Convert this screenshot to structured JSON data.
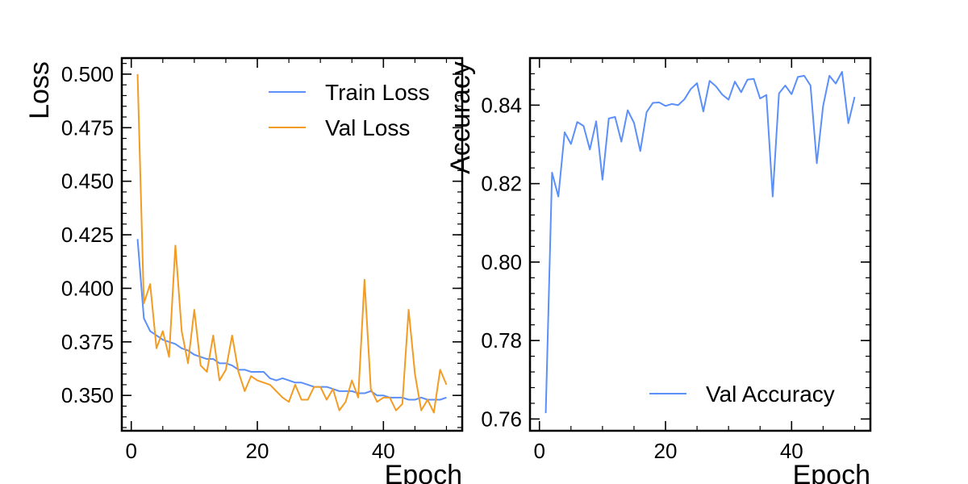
{
  "chart_data": [
    {
      "type": "line",
      "xlabel": "Epoch",
      "ylabel": "Loss",
      "xlim": [
        -1.5,
        52.5
      ],
      "ylim": [
        0.3335,
        0.5075
      ],
      "xticks": [
        0,
        20,
        40
      ],
      "xtick_labels": [
        "0",
        "20",
        "40"
      ],
      "yticks": [
        0.35,
        0.375,
        0.4,
        0.425,
        0.45,
        0.475,
        0.5
      ],
      "ytick_labels": [
        "0.350",
        "0.375",
        "0.400",
        "0.425",
        "0.450",
        "0.475",
        "0.500"
      ],
      "legend_position": "top-right",
      "grid": false,
      "x": [
        1,
        2,
        3,
        4,
        5,
        6,
        7,
        8,
        9,
        10,
        11,
        12,
        13,
        14,
        15,
        16,
        17,
        18,
        19,
        20,
        21,
        22,
        23,
        24,
        25,
        26,
        27,
        28,
        29,
        30,
        31,
        32,
        33,
        34,
        35,
        36,
        37,
        38,
        39,
        40,
        41,
        42,
        43,
        44,
        45,
        46,
        47,
        48,
        49,
        50
      ],
      "series": [
        {
          "name": "Train Loss",
          "color": "#5b8ff9",
          "values": [
            0.423,
            0.386,
            0.38,
            0.378,
            0.376,
            0.375,
            0.374,
            0.372,
            0.371,
            0.369,
            0.368,
            0.367,
            0.367,
            0.365,
            0.365,
            0.364,
            0.362,
            0.362,
            0.361,
            0.361,
            0.361,
            0.358,
            0.357,
            0.358,
            0.357,
            0.356,
            0.356,
            0.355,
            0.354,
            0.354,
            0.354,
            0.353,
            0.352,
            0.352,
            0.352,
            0.351,
            0.351,
            0.352,
            0.35,
            0.35,
            0.349,
            0.349,
            0.349,
            0.348,
            0.348,
            0.349,
            0.348,
            0.348,
            0.348,
            0.349
          ]
        },
        {
          "name": "Val Loss",
          "color": "#f39c24",
          "values": [
            0.5,
            0.393,
            0.402,
            0.372,
            0.38,
            0.368,
            0.42,
            0.38,
            0.365,
            0.39,
            0.364,
            0.361,
            0.378,
            0.357,
            0.362,
            0.378,
            0.361,
            0.352,
            0.359,
            0.357,
            0.356,
            0.355,
            0.352,
            0.349,
            0.347,
            0.355,
            0.348,
            0.348,
            0.354,
            0.354,
            0.348,
            0.353,
            0.343,
            0.347,
            0.357,
            0.349,
            0.404,
            0.353,
            0.347,
            0.349,
            0.349,
            0.343,
            0.346,
            0.39,
            0.36,
            0.343,
            0.348,
            0.342,
            0.362,
            0.355
          ]
        }
      ]
    },
    {
      "type": "line",
      "xlabel": "Epoch",
      "ylabel": "Accuracy",
      "xlim": [
        -1.5,
        52.5
      ],
      "ylim": [
        0.757,
        0.852
      ],
      "xticks": [
        0,
        20,
        40
      ],
      "xtick_labels": [
        "0",
        "20",
        "40"
      ],
      "yticks": [
        0.76,
        0.78,
        0.8,
        0.82,
        0.84
      ],
      "ytick_labels": [
        "0.76",
        "0.78",
        "0.80",
        "0.82",
        "0.84"
      ],
      "legend_position": "bottom-right",
      "grid": false,
      "x": [
        1,
        2,
        3,
        4,
        5,
        6,
        7,
        8,
        9,
        10,
        11,
        12,
        13,
        14,
        15,
        16,
        17,
        18,
        19,
        20,
        21,
        22,
        23,
        24,
        25,
        26,
        27,
        28,
        29,
        30,
        31,
        32,
        33,
        34,
        35,
        36,
        37,
        38,
        39,
        40,
        41,
        42,
        43,
        44,
        45,
        46,
        47,
        48,
        49,
        50
      ],
      "series": [
        {
          "name": "Val Accuracy",
          "color": "#5b8ff9",
          "values": [
            0.7615,
            0.8228,
            0.8167,
            0.8331,
            0.8301,
            0.8357,
            0.8347,
            0.8287,
            0.8359,
            0.821,
            0.8366,
            0.837,
            0.8307,
            0.8387,
            0.8355,
            0.8283,
            0.8382,
            0.8406,
            0.8407,
            0.8398,
            0.8403,
            0.84,
            0.8415,
            0.8441,
            0.8456,
            0.8384,
            0.8462,
            0.8448,
            0.8427,
            0.8414,
            0.846,
            0.8433,
            0.8465,
            0.8467,
            0.8417,
            0.8426,
            0.8167,
            0.843,
            0.845,
            0.8428,
            0.8472,
            0.8475,
            0.845,
            0.8252,
            0.8398,
            0.8475,
            0.8455,
            0.8485,
            0.8354,
            0.8421
          ]
        }
      ]
    }
  ]
}
